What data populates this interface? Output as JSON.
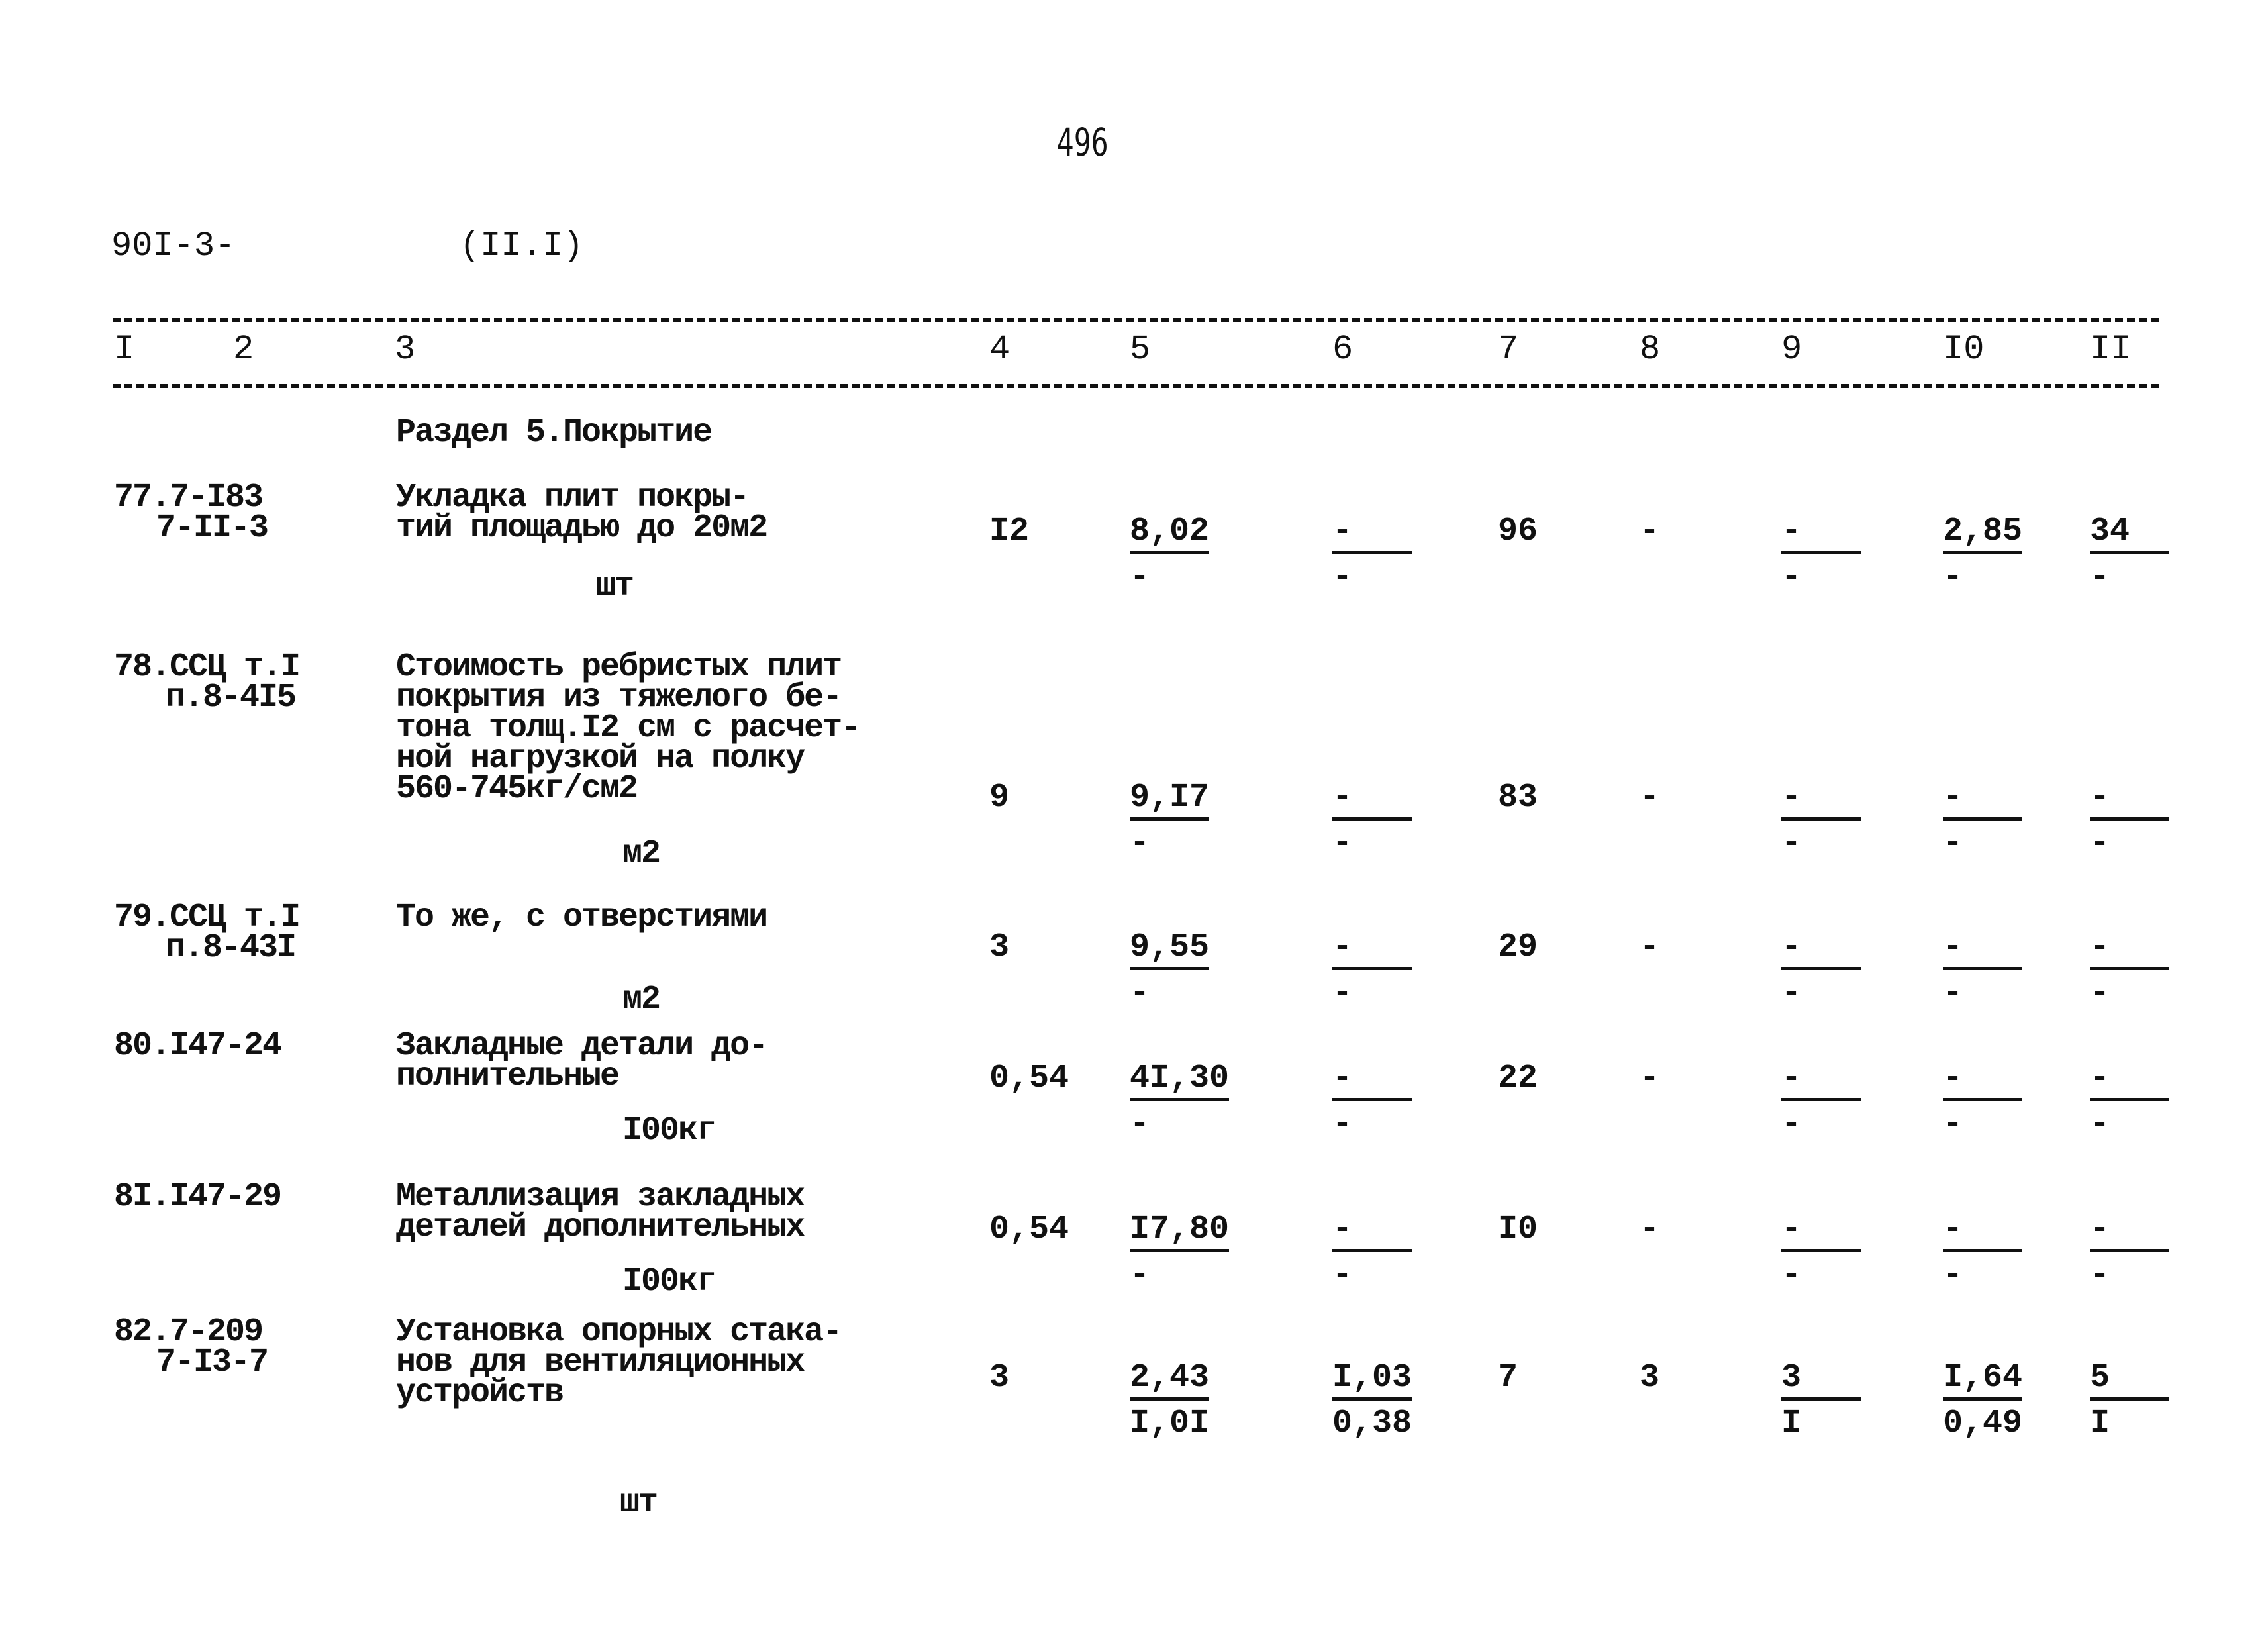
{
  "page_number": "496",
  "doc_code": "90I-3-",
  "doc_section": "(II.I)",
  "columns": [
    "I",
    "2",
    "3",
    "4",
    "5",
    "6",
    "7",
    "8",
    "9",
    "I0",
    "II"
  ],
  "section_title": "Раздел 5.Покрытие",
  "rows": [
    {
      "code": [
        "77.7-I83",
        "7-II-3"
      ],
      "desc": [
        "Укладка плит покры-",
        "тий площадью до 20м2"
      ],
      "unit": "шт",
      "c4": "I2",
      "c5": [
        "8,02",
        "-"
      ],
      "c6": [
        "-",
        "-"
      ],
      "c7": "96",
      "c8": "-",
      "c9": [
        "-",
        "-"
      ],
      "c10": [
        "2,85",
        "-"
      ],
      "c11": [
        "34",
        "-"
      ]
    },
    {
      "code": [
        "78.ССЦ т.I",
        "п.8-4I5"
      ],
      "desc": [
        "Стоимость ребристых плит",
        "покрытия из тяжелого бе-",
        "тона толщ.I2 см с расчет-",
        "ной нагрузкой на полку",
        "560-745кг/см2"
      ],
      "unit": "м2",
      "c4": "9",
      "c5": [
        "9,I7",
        "-"
      ],
      "c6": [
        "-",
        "-"
      ],
      "c7": "83",
      "c8": "-",
      "c9": [
        "-",
        "-"
      ],
      "c10": [
        "-",
        "-"
      ],
      "c11": [
        "-",
        "-"
      ]
    },
    {
      "code": [
        "79.ССЦ т.I",
        "п.8-43I"
      ],
      "desc": [
        "То же, с отверстиями"
      ],
      "unit": "м2",
      "c4": "3",
      "c5": [
        "9,55",
        "-"
      ],
      "c6": [
        "-",
        "-"
      ],
      "c7": "29",
      "c8": "-",
      "c9": [
        "-",
        "-"
      ],
      "c10": [
        "-",
        "-"
      ],
      "c11": [
        "-",
        "-"
      ]
    },
    {
      "code": [
        "80.I47-24"
      ],
      "desc": [
        "Закладные детали до-",
        "полнительные"
      ],
      "unit": "I00кг",
      "c4": "0,54",
      "c5": [
        "4I,30",
        "-"
      ],
      "c6": [
        "-",
        "-"
      ],
      "c7": "22",
      "c8": "-",
      "c9": [
        "-",
        "-"
      ],
      "c10": [
        "-",
        "-"
      ],
      "c11": [
        "-",
        "-"
      ]
    },
    {
      "code": [
        "8I.I47-29"
      ],
      "desc": [
        "Металлизация закладных",
        "деталей дополнительных"
      ],
      "unit": "I00кг",
      "c4": "0,54",
      "c5": [
        "I7,80",
        "-"
      ],
      "c6": [
        "-",
        "-"
      ],
      "c7": "I0",
      "c8": "-",
      "c9": [
        "-",
        "-"
      ],
      "c10": [
        "-",
        "-"
      ],
      "c11": [
        "-",
        "-"
      ]
    },
    {
      "code": [
        "82.7-209",
        "7-I3-7"
      ],
      "desc": [
        "Установка опорных стака-",
        "нов для вентиляционных",
        "устройств"
      ],
      "unit": "шт",
      "c4": "3",
      "c5": [
        "2,43",
        "I,0I"
      ],
      "c6": [
        "I,03",
        "0,38"
      ],
      "c7": "7",
      "c8": "3",
      "c9": [
        "3",
        "I"
      ],
      "c10": [
        "I,64",
        "0,49"
      ],
      "c11": [
        "5",
        "I"
      ]
    }
  ]
}
